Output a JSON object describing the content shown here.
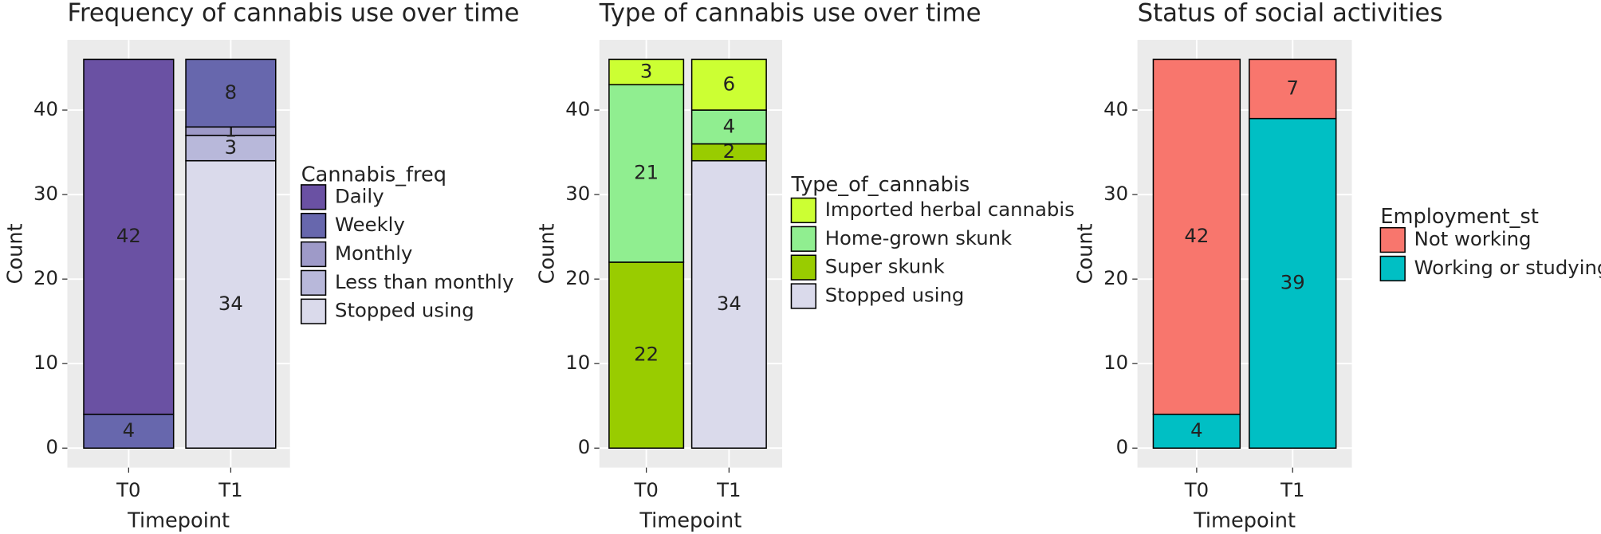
{
  "chart_data": [
    {
      "type": "bar",
      "stacked": true,
      "title": "Frequency of cannabis use over time",
      "x_label": "Timepoint",
      "y_label": "Count",
      "legend_title": "Cannabis_freq",
      "categories": [
        "T0",
        "T1"
      ],
      "ylim": [
        -2.3,
        48.3
      ],
      "yticks": [
        0,
        10,
        20,
        30,
        40
      ],
      "grid": true,
      "series": [
        {
          "name": "Daily",
          "color": "#6a51a3",
          "values": [
            42,
            null
          ]
        },
        {
          "name": "Weekly",
          "color": "#6767ad",
          "values": [
            4,
            8
          ]
        },
        {
          "name": "Monthly",
          "color": "#9e9ac8",
          "values": [
            null,
            1
          ]
        },
        {
          "name": "Less than monthly",
          "color": "#b8b8da",
          "values": [
            null,
            3
          ]
        },
        {
          "name": "Stopped using",
          "color": "#dadaeb",
          "values": [
            null,
            34
          ]
        }
      ]
    },
    {
      "type": "bar",
      "stacked": true,
      "title": "Type of cannabis use over time",
      "x_label": "Timepoint",
      "y_label": "Count",
      "legend_title": "Type_of_cannabis",
      "categories": [
        "T0",
        "T1"
      ],
      "ylim": [
        -2.3,
        48.3
      ],
      "yticks": [
        0,
        10,
        20,
        30,
        40
      ],
      "grid": true,
      "series": [
        {
          "name": "Imported herbal cannabis",
          "color": "#ccff33",
          "values": [
            3,
            6
          ]
        },
        {
          "name": "Home-grown skunk",
          "color": "#90ee90",
          "values": [
            21,
            4
          ]
        },
        {
          "name": "Super skunk",
          "color": "#99cc00",
          "values": [
            22,
            2
          ]
        },
        {
          "name": "Stopped using",
          "color": "#dadaeb",
          "values": [
            null,
            34
          ]
        }
      ]
    },
    {
      "type": "bar",
      "stacked": true,
      "title": "Status of social activities",
      "x_label": "Timepoint",
      "y_label": "Count",
      "legend_title": "Employment_st",
      "categories": [
        "T0",
        "T1"
      ],
      "ylim": [
        -2.3,
        48.3
      ],
      "yticks": [
        0,
        10,
        20,
        30,
        40
      ],
      "grid": true,
      "series": [
        {
          "name": "Not working",
          "color": "#f8766d",
          "values": [
            42,
            7
          ]
        },
        {
          "name": "Working or studying",
          "color": "#00bfc4",
          "values": [
            4,
            39
          ]
        }
      ]
    }
  ]
}
